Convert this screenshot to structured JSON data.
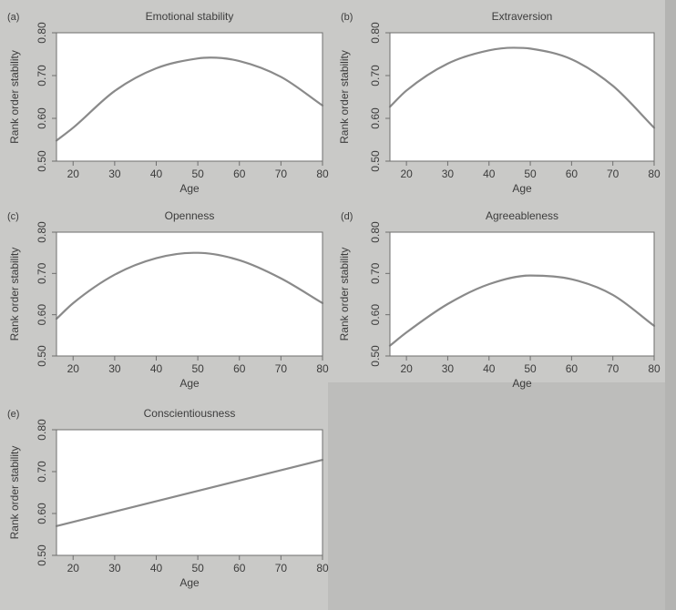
{
  "chart_data": [
    {
      "type": "line",
      "letter": "(a)",
      "title": "Emotional stability",
      "xlabel": "Age",
      "ylabel": "Rank order stability",
      "xlim": [
        16,
        80
      ],
      "ylim": [
        0.5,
        0.8
      ],
      "xticks": [
        20,
        30,
        40,
        50,
        60,
        70,
        80
      ],
      "yticks": [
        "0.50",
        "0.60",
        "0.70",
        "0.80"
      ],
      "x": [
        16,
        20,
        30,
        40,
        50,
        53,
        60,
        70,
        80
      ],
      "y": [
        0.548,
        0.578,
        0.664,
        0.717,
        0.74,
        0.742,
        0.734,
        0.697,
        0.63
      ]
    },
    {
      "type": "line",
      "letter": "(b)",
      "title": "Extraversion",
      "xlabel": "Age",
      "ylabel": "Rank order stability",
      "xlim": [
        16,
        80
      ],
      "ylim": [
        0.5,
        0.8
      ],
      "xticks": [
        20,
        30,
        40,
        50,
        60,
        70,
        80
      ],
      "yticks": [
        "0.50",
        "0.60",
        "0.70",
        "0.80"
      ],
      "x": [
        16,
        20,
        30,
        40,
        46,
        50,
        60,
        70,
        80
      ],
      "y": [
        0.627,
        0.665,
        0.728,
        0.759,
        0.765,
        0.763,
        0.738,
        0.676,
        0.578
      ]
    },
    {
      "type": "line",
      "letter": "(c)",
      "title": "Openness",
      "xlabel": "Age",
      "ylabel": "Rank order stability",
      "xlim": [
        16,
        80
      ],
      "ylim": [
        0.5,
        0.8
      ],
      "xticks": [
        20,
        30,
        40,
        50,
        60,
        70,
        80
      ],
      "yticks": [
        "0.50",
        "0.60",
        "0.70",
        "0.80"
      ],
      "x": [
        16,
        20,
        30,
        40,
        49,
        50,
        60,
        70,
        80
      ],
      "y": [
        0.59,
        0.628,
        0.697,
        0.737,
        0.75,
        0.75,
        0.732,
        0.688,
        0.628
      ]
    },
    {
      "type": "line",
      "letter": "(d)",
      "title": "Agreeableness",
      "xlabel": "Age",
      "ylabel": "Rank order stability",
      "xlim": [
        16,
        80
      ],
      "ylim": [
        0.5,
        0.8
      ],
      "xticks": [
        20,
        30,
        40,
        50,
        60,
        70,
        80
      ],
      "yticks": [
        "0.50",
        "0.60",
        "0.70",
        "0.80"
      ],
      "x": [
        16,
        20,
        30,
        40,
        50,
        60,
        70,
        80
      ],
      "y": [
        0.525,
        0.557,
        0.626,
        0.674,
        0.695,
        0.686,
        0.648,
        0.573
      ]
    },
    {
      "type": "line",
      "letter": "(e)",
      "title": "Conscientiousness",
      "xlabel": "Age",
      "ylabel": "Rank order stability",
      "xlim": [
        16,
        80
      ],
      "ylim": [
        0.5,
        0.8
      ],
      "xticks": [
        20,
        30,
        40,
        50,
        60,
        70,
        80
      ],
      "yticks": [
        "0.50",
        "0.60",
        "0.70",
        "0.80"
      ],
      "x": [
        16,
        80
      ],
      "y": [
        0.57,
        0.728
      ]
    }
  ]
}
